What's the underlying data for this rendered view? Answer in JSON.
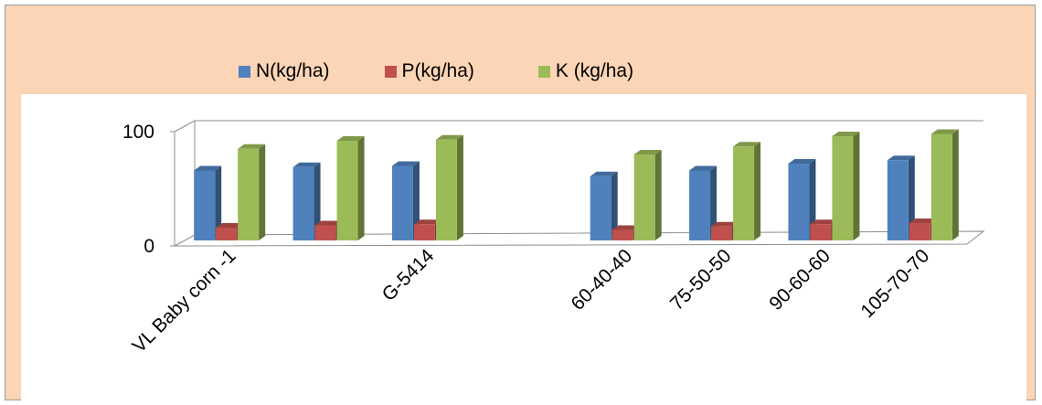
{
  "chart_data": {
    "type": "bar",
    "categories": [
      "VL Baby corn -1",
      "",
      "G-5414",
      "",
      "60-40-40",
      "75-50-50",
      "90-60-60",
      "105-70-70"
    ],
    "series": [
      {
        "name": "N(kg/ha)",
        "color": "#4f81bd",
        "values": [
          66,
          69,
          70,
          null,
          61,
          66,
          72,
          75
        ]
      },
      {
        "name": "P(kg/ha)",
        "color": "#c0504d",
        "values": [
          16,
          18,
          19,
          null,
          14,
          17,
          19,
          20
        ]
      },
      {
        "name": "K (kg/ha)",
        "color": "#9bbb59",
        "values": [
          85,
          92,
          93,
          null,
          80,
          87,
          96,
          98
        ]
      }
    ],
    "yticks": [
      0,
      100
    ],
    "ylim": [
      0,
      100
    ],
    "legend": "top",
    "grid": true
  }
}
